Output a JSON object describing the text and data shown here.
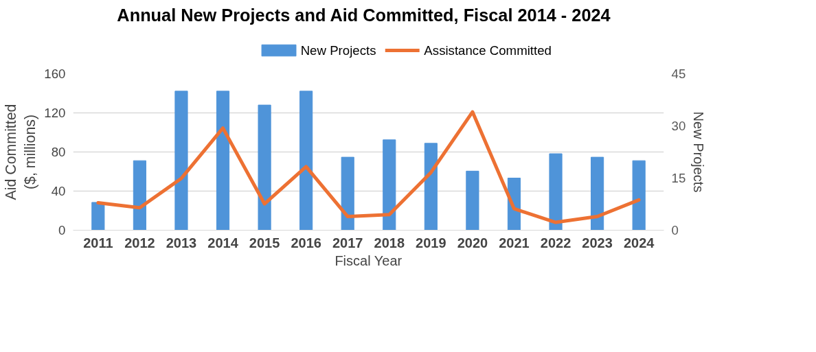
{
  "chart_data": {
    "type": "bar",
    "title": "Annual New Projects and Aid Committed, Fiscal 2014 - 2024",
    "xlabel": "Fiscal Year",
    "ylabel": "Aid Committed\n($, millions)",
    "y2label": "New Projects",
    "categories": [
      "2011",
      "2012",
      "2013",
      "2014",
      "2015",
      "2016",
      "2017",
      "2018",
      "2019",
      "2020",
      "2021",
      "2022",
      "2023",
      "2024"
    ],
    "series": [
      {
        "name": "New Projects",
        "axis": "y2",
        "color": "#4f94d9",
        "values": [
          8,
          20,
          40,
          40,
          36,
          40,
          21,
          26,
          25,
          17,
          15,
          22,
          21,
          20
        ]
      },
      {
        "name": "Assistance Committed",
        "type": "line",
        "axis": "y",
        "color": "#ed7133",
        "values": [
          28,
          23,
          53,
          104.5,
          27,
          65,
          14,
          16,
          59,
          121,
          22,
          8,
          14,
          31
        ]
      }
    ],
    "ylim": [
      0,
      160
    ],
    "yticks": [
      0,
      40,
      80,
      120,
      160
    ],
    "y2lim": [
      0,
      45
    ],
    "y2ticks": [
      0,
      15,
      30,
      45
    ],
    "grid": "y",
    "legend": "top"
  }
}
